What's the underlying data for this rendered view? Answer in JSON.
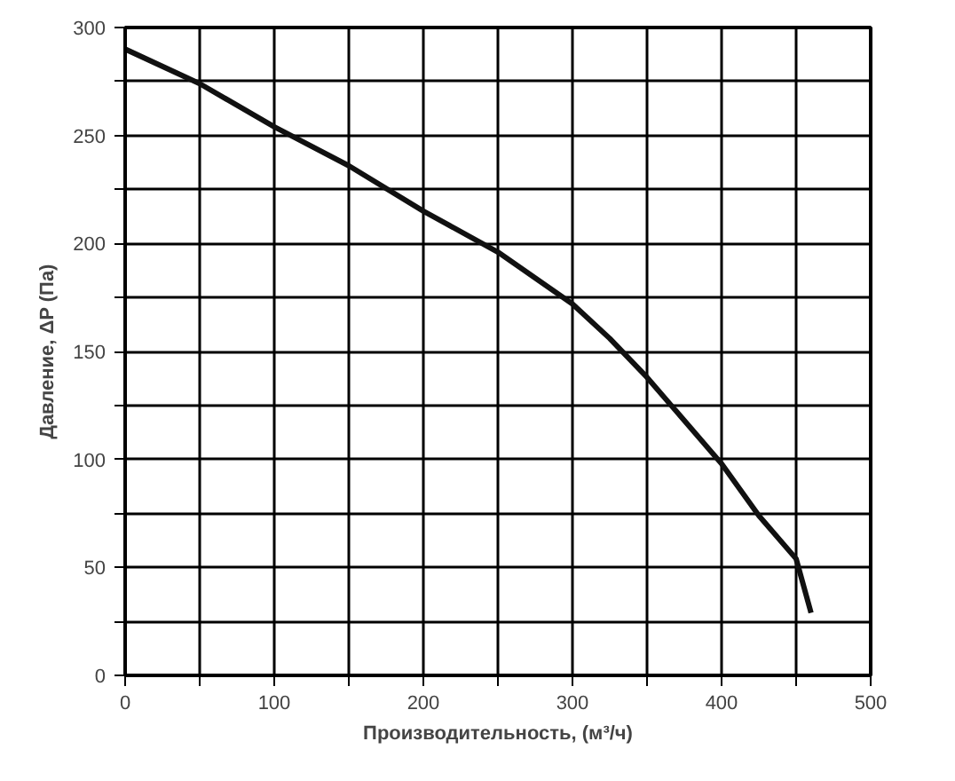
{
  "chart_data": {
    "type": "line",
    "xlabel": "Производительность, (м³/ч)",
    "ylabel": "Давление, ΔP (Па)",
    "xlim": [
      0,
      500
    ],
    "ylim": [
      0,
      300
    ],
    "xticks": [
      0,
      {
        "value": 50,
        "label": null
      },
      100,
      {
        "value": 150,
        "label": null
      },
      200,
      {
        "value": 250,
        "label": null
      },
      300,
      {
        "value": 350,
        "label": null
      },
      400,
      {
        "value": 450,
        "label": null
      },
      500
    ],
    "yticks": [
      0,
      {
        "value": 25,
        "label": null
      },
      50,
      {
        "value": 75,
        "label": null
      },
      100,
      {
        "value": 125,
        "label": null
      },
      150,
      {
        "value": 175,
        "label": null
      },
      200,
      {
        "value": 225,
        "label": null
      },
      250,
      {
        "value": 275,
        "label": null
      },
      300
    ],
    "grid": true,
    "marker": "none",
    "line_style": "solid",
    "series": [
      {
        "color": "#111111",
        "x": [
          0,
          50,
          100,
          150,
          200,
          250,
          300,
          325,
          350,
          400,
          425,
          450,
          460
        ],
        "values": [
          290,
          274,
          254,
          236,
          215,
          196,
          172,
          156,
          138,
          98,
          74,
          54,
          29
        ]
      }
    ]
  }
}
